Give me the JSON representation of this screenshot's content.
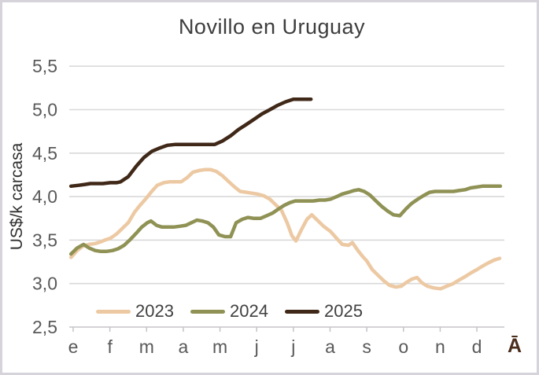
{
  "chart_data": {
    "type": "line",
    "title": "Novillo en Uruguay",
    "ylabel": "US$/k carcasa",
    "x_tick_labels": [
      "e",
      "f",
      "m",
      "a",
      "m",
      "j",
      "j",
      "a",
      "s",
      "o",
      "n",
      "d"
    ],
    "x_trailing_label": "Ā",
    "y_ticks": [
      2.5,
      3.0,
      3.5,
      4.0,
      4.5,
      5.0,
      5.5
    ],
    "y_tick_labels": [
      "2,5",
      "3,0",
      "3,5",
      "4,0",
      "4,5",
      "5,0",
      "5,5"
    ],
    "ylim": [
      2.5,
      5.5
    ],
    "grid": true,
    "legend_position": "bottom-inside",
    "series": [
      {
        "name": "2023",
        "color": "#ECC9A3",
        "points": [
          [
            -0.06,
            3.3
          ],
          [
            0.11,
            3.38
          ],
          [
            0.26,
            3.43
          ],
          [
            0.43,
            3.45
          ],
          [
            0.6,
            3.46
          ],
          [
            0.75,
            3.48
          ],
          [
            0.86,
            3.5
          ],
          [
            1.01,
            3.52
          ],
          [
            1.18,
            3.57
          ],
          [
            1.33,
            3.63
          ],
          [
            1.5,
            3.7
          ],
          [
            1.67,
            3.82
          ],
          [
            1.82,
            3.9
          ],
          [
            1.99,
            3.98
          ],
          [
            2.14,
            4.06
          ],
          [
            2.29,
            4.13
          ],
          [
            2.47,
            4.16
          ],
          [
            2.62,
            4.17
          ],
          [
            2.79,
            4.17
          ],
          [
            2.94,
            4.17
          ],
          [
            3.11,
            4.22
          ],
          [
            3.26,
            4.28
          ],
          [
            3.43,
            4.3
          ],
          [
            3.58,
            4.31
          ],
          [
            3.75,
            4.31
          ],
          [
            3.9,
            4.29
          ],
          [
            4.07,
            4.24
          ],
          [
            4.22,
            4.18
          ],
          [
            4.4,
            4.11
          ],
          [
            4.55,
            4.06
          ],
          [
            4.72,
            4.05
          ],
          [
            4.87,
            4.04
          ],
          [
            5.02,
            4.03
          ],
          [
            5.19,
            4.01
          ],
          [
            5.36,
            3.97
          ],
          [
            5.51,
            3.91
          ],
          [
            5.68,
            3.84
          ],
          [
            5.83,
            3.7
          ],
          [
            5.96,
            3.55
          ],
          [
            6.07,
            3.49
          ],
          [
            6.22,
            3.62
          ],
          [
            6.37,
            3.74
          ],
          [
            6.5,
            3.79
          ],
          [
            6.65,
            3.73
          ],
          [
            6.82,
            3.66
          ],
          [
            7.01,
            3.6
          ],
          [
            7.18,
            3.52
          ],
          [
            7.33,
            3.45
          ],
          [
            7.5,
            3.44
          ],
          [
            7.61,
            3.47
          ],
          [
            7.76,
            3.38
          ],
          [
            7.89,
            3.31
          ],
          [
            8.0,
            3.26
          ],
          [
            8.15,
            3.16
          ],
          [
            8.32,
            3.09
          ],
          [
            8.47,
            3.03
          ],
          [
            8.62,
            2.98
          ],
          [
            8.79,
            2.96
          ],
          [
            8.94,
            2.97
          ],
          [
            9.07,
            3.01
          ],
          [
            9.22,
            3.05
          ],
          [
            9.37,
            3.07
          ],
          [
            9.5,
            3.01
          ],
          [
            9.65,
            2.97
          ],
          [
            9.82,
            2.95
          ],
          [
            10.01,
            2.94
          ],
          [
            10.18,
            2.97
          ],
          [
            10.36,
            3.0
          ],
          [
            10.51,
            3.04
          ],
          [
            10.68,
            3.08
          ],
          [
            10.83,
            3.12
          ],
          [
            11.0,
            3.16
          ],
          [
            11.15,
            3.2
          ],
          [
            11.32,
            3.24
          ],
          [
            11.47,
            3.27
          ],
          [
            11.62,
            3.29
          ]
        ]
      },
      {
        "name": "2024",
        "color": "#8F9254",
        "points": [
          [
            -0.06,
            3.34
          ],
          [
            0.11,
            3.41
          ],
          [
            0.28,
            3.45
          ],
          [
            0.43,
            3.41
          ],
          [
            0.6,
            3.38
          ],
          [
            0.75,
            3.37
          ],
          [
            0.9,
            3.37
          ],
          [
            1.07,
            3.38
          ],
          [
            1.22,
            3.4
          ],
          [
            1.39,
            3.44
          ],
          [
            1.54,
            3.5
          ],
          [
            1.72,
            3.58
          ],
          [
            1.87,
            3.65
          ],
          [
            2.02,
            3.7
          ],
          [
            2.12,
            3.72
          ],
          [
            2.27,
            3.67
          ],
          [
            2.42,
            3.65
          ],
          [
            2.59,
            3.65
          ],
          [
            2.74,
            3.65
          ],
          [
            2.92,
            3.66
          ],
          [
            3.07,
            3.67
          ],
          [
            3.22,
            3.7
          ],
          [
            3.37,
            3.73
          ],
          [
            3.52,
            3.72
          ],
          [
            3.67,
            3.7
          ],
          [
            3.82,
            3.65
          ],
          [
            3.97,
            3.56
          ],
          [
            4.14,
            3.54
          ],
          [
            4.29,
            3.54
          ],
          [
            4.44,
            3.7
          ],
          [
            4.61,
            3.74
          ],
          [
            4.76,
            3.76
          ],
          [
            4.93,
            3.75
          ],
          [
            5.1,
            3.75
          ],
          [
            5.27,
            3.78
          ],
          [
            5.43,
            3.81
          ],
          [
            5.6,
            3.86
          ],
          [
            5.75,
            3.9
          ],
          [
            5.9,
            3.93
          ],
          [
            6.05,
            3.95
          ],
          [
            6.22,
            3.95
          ],
          [
            6.39,
            3.95
          ],
          [
            6.54,
            3.95
          ],
          [
            6.71,
            3.96
          ],
          [
            6.86,
            3.96
          ],
          [
            7.01,
            3.97
          ],
          [
            7.18,
            4.0
          ],
          [
            7.33,
            4.03
          ],
          [
            7.5,
            4.05
          ],
          [
            7.65,
            4.07
          ],
          [
            7.78,
            4.08
          ],
          [
            7.93,
            4.06
          ],
          [
            8.08,
            4.02
          ],
          [
            8.25,
            3.95
          ],
          [
            8.4,
            3.89
          ],
          [
            8.58,
            3.83
          ],
          [
            8.73,
            3.79
          ],
          [
            8.9,
            3.78
          ],
          [
            9.07,
            3.86
          ],
          [
            9.22,
            3.92
          ],
          [
            9.39,
            3.97
          ],
          [
            9.54,
            4.01
          ],
          [
            9.71,
            4.05
          ],
          [
            9.86,
            4.06
          ],
          [
            10.03,
            4.06
          ],
          [
            10.18,
            4.06
          ],
          [
            10.36,
            4.06
          ],
          [
            10.51,
            4.07
          ],
          [
            10.68,
            4.08
          ],
          [
            10.83,
            4.1
          ],
          [
            11.0,
            4.11
          ],
          [
            11.15,
            4.12
          ],
          [
            11.32,
            4.12
          ],
          [
            11.49,
            4.12
          ],
          [
            11.64,
            4.12
          ]
        ]
      },
      {
        "name": "2025",
        "color": "#402818",
        "points": [
          [
            -0.06,
            4.12
          ],
          [
            0.15,
            4.13
          ],
          [
            0.32,
            4.14
          ],
          [
            0.47,
            4.15
          ],
          [
            0.64,
            4.15
          ],
          [
            0.81,
            4.15
          ],
          [
            1.01,
            4.16
          ],
          [
            1.18,
            4.16
          ],
          [
            1.29,
            4.17
          ],
          [
            1.5,
            4.23
          ],
          [
            1.72,
            4.35
          ],
          [
            1.93,
            4.45
          ],
          [
            2.14,
            4.52
          ],
          [
            2.36,
            4.56
          ],
          [
            2.57,
            4.59
          ],
          [
            2.79,
            4.6
          ],
          [
            3.0,
            4.6
          ],
          [
            3.21,
            4.6
          ],
          [
            3.43,
            4.6
          ],
          [
            3.64,
            4.6
          ],
          [
            3.86,
            4.6
          ],
          [
            4.07,
            4.64
          ],
          [
            4.29,
            4.7
          ],
          [
            4.5,
            4.77
          ],
          [
            4.72,
            4.83
          ],
          [
            4.93,
            4.89
          ],
          [
            5.14,
            4.95
          ],
          [
            5.36,
            5.0
          ],
          [
            5.57,
            5.05
          ],
          [
            5.79,
            5.09
          ],
          [
            6.0,
            5.12
          ],
          [
            6.22,
            5.12
          ],
          [
            6.48,
            5.12
          ]
        ]
      }
    ]
  },
  "styles": {
    "grid_color": "#d9d9d9",
    "axis_color": "#c6c3c9",
    "tick_label_color": "#595959",
    "title_color": "#3d3d3d",
    "frame_border_color": "#d6d3da",
    "trailing_label_color": "#4b2d1b",
    "legend_label_color": "#404040"
  }
}
